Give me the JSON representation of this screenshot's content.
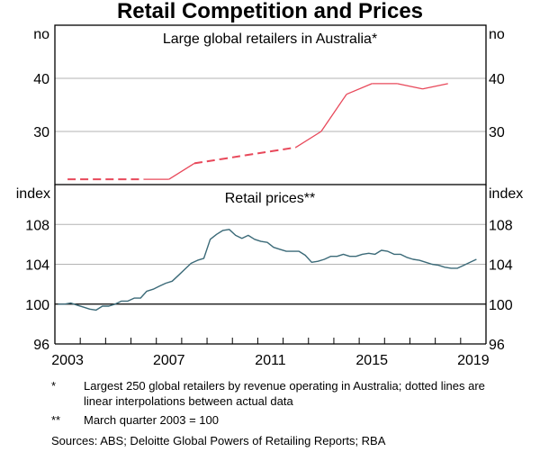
{
  "title": "Retail Competition and Prices",
  "chart_data": [
    {
      "type": "line",
      "title": "Large global retailers in Australia*",
      "ylabel_left": "no",
      "ylabel_right": "no",
      "ylim": [
        20,
        50
      ],
      "yticks": [
        30,
        40
      ],
      "grid": true,
      "color": "#e8485a",
      "series": [
        {
          "name": "Large global retailers in Australia",
          "x": [
            2003,
            2004,
            2005,
            2006,
            2007,
            2008,
            2009,
            2010,
            2011,
            2012,
            2013,
            2014,
            2015,
            2016,
            2017,
            2018
          ],
          "values": [
            21,
            21,
            21,
            21,
            21,
            24,
            24.75,
            25.5,
            26.25,
            27,
            30,
            37,
            39,
            39,
            38,
            39
          ],
          "interpolated": [
            true,
            true,
            true,
            false,
            false,
            false,
            true,
            true,
            true,
            false,
            false,
            false,
            false,
            false,
            false,
            false
          ]
        }
      ]
    },
    {
      "type": "line",
      "title": "Retail prices**",
      "ylabel_left": "index",
      "ylabel_right": "index",
      "ylim": [
        96,
        112
      ],
      "yticks": [
        96,
        100,
        104,
        108
      ],
      "grid": true,
      "color": "#3b6a78",
      "series": [
        {
          "name": "Retail prices",
          "x_start": "2003Q1",
          "frequency": "quarterly",
          "values": [
            100.0,
            100.0,
            100.1,
            99.9,
            99.7,
            99.5,
            99.4,
            99.8,
            99.8,
            100.0,
            100.3,
            100.3,
            100.6,
            100.6,
            101.3,
            101.5,
            101.8,
            102.1,
            102.3,
            102.9,
            103.5,
            104.1,
            104.4,
            104.6,
            106.5,
            107.0,
            107.4,
            107.5,
            106.9,
            106.6,
            106.9,
            106.5,
            106.3,
            106.2,
            105.7,
            105.5,
            105.3,
            105.3,
            105.3,
            104.9,
            104.2,
            104.3,
            104.5,
            104.8,
            104.8,
            105.0,
            104.8,
            104.8,
            105.0,
            105.1,
            105.0,
            105.4,
            105.3,
            105.0,
            105.0,
            104.7,
            104.5,
            104.4,
            104.2,
            104.0,
            103.9,
            103.7,
            103.6,
            103.6,
            103.9,
            104.2,
            104.5
          ]
        }
      ]
    }
  ],
  "xaxis": {
    "range": [
      2003,
      2020
    ],
    "tick_labels": [
      "2003",
      "2007",
      "2011",
      "2015",
      "2019"
    ]
  },
  "notes": [
    {
      "mark": "*",
      "text": "Largest 250 global retailers by revenue operating in Australia; dotted lines are linear interpolations between actual data"
    },
    {
      "mark": "**",
      "text": "March quarter 2003 = 100"
    }
  ],
  "sources": "Sources:   ABS; Deloitte Global Powers of Retailing Reports; RBA"
}
